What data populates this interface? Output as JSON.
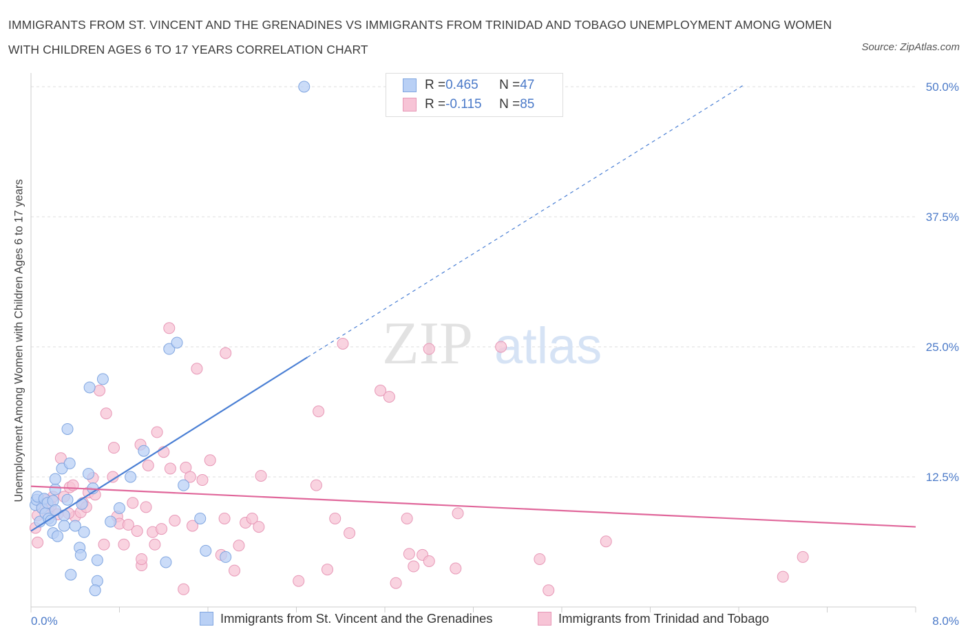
{
  "title": "Immigrants from St. Vincent and the Grenadines vs Immigrants from Trinidad and Tobago Unemployment Among Women with Children Ages 6 to 17 years Correlation Chart",
  "source": "Source: ZipAtlas.com",
  "watermark": {
    "zip": "ZIP",
    "atlas": "atlas"
  },
  "colors": {
    "blue": "#4a7fd4",
    "blue_fill": "#b9d0f5",
    "pink": "#e0669a",
    "pink_fill": "#f7c4d6",
    "grid": "#dddddd",
    "axis_text": "#4a79c8"
  },
  "legend": {
    "rows": [
      {
        "r_label": "R = ",
        "r_value": "0.465",
        "n_label": "N = ",
        "n_value": "47"
      },
      {
        "r_label": "R = ",
        "r_value": "-0.115",
        "n_label": "N = ",
        "n_value": "85"
      }
    ]
  },
  "chart_data": {
    "type": "scatter",
    "xlabel": "",
    "ylabel": "Unemployment Among Women with Children Ages 6 to 17 years",
    "xlim": [
      0,
      8
    ],
    "ylim": [
      0,
      50
    ],
    "x_tick_labels": [
      "0.0%",
      "8.0%"
    ],
    "y_ticks": [
      12.5,
      25.0,
      37.5,
      50.0
    ],
    "y_tick_labels": [
      "12.5%",
      "25.0%",
      "37.5%",
      "50.0%"
    ],
    "grid": true,
    "legend_position": "top-center",
    "series": [
      {
        "name": "Immigrants from St. Vincent and the Grenadines",
        "color": "#4a7fd4",
        "trend": {
          "x": [
            0.0,
            2.5
          ],
          "y": [
            7.3,
            24.0
          ],
          "dashed_to": {
            "x": 6.45,
            "y": 50.2
          }
        },
        "points": [
          [
            0.04,
            9.8
          ],
          [
            0.05,
            10.3
          ],
          [
            0.06,
            10.6
          ],
          [
            0.08,
            8.2
          ],
          [
            0.1,
            9.5
          ],
          [
            0.12,
            10.4
          ],
          [
            0.13,
            9.0
          ],
          [
            0.15,
            10.0
          ],
          [
            0.16,
            8.5
          ],
          [
            0.18,
            8.3
          ],
          [
            0.2,
            10.2
          ],
          [
            0.22,
            9.3
          ],
          [
            0.22,
            11.3
          ],
          [
            0.2,
            7.1
          ],
          [
            0.22,
            12.3
          ],
          [
            0.24,
            6.8
          ],
          [
            0.3,
            8.8
          ],
          [
            0.3,
            7.8
          ],
          [
            0.28,
            13.3
          ],
          [
            0.33,
            10.3
          ],
          [
            0.35,
            13.8
          ],
          [
            0.36,
            3.1
          ],
          [
            0.33,
            17.1
          ],
          [
            0.44,
            5.7
          ],
          [
            0.45,
            5.0
          ],
          [
            0.48,
            7.2
          ],
          [
            0.46,
            9.9
          ],
          [
            0.52,
            12.8
          ],
          [
            0.53,
            21.1
          ],
          [
            0.56,
            11.4
          ],
          [
            0.6,
            2.5
          ],
          [
            0.58,
            1.6
          ],
          [
            0.6,
            4.5
          ],
          [
            0.65,
            21.9
          ],
          [
            0.72,
            8.2
          ],
          [
            0.8,
            9.5
          ],
          [
            0.9,
            12.5
          ],
          [
            1.02,
            15.0
          ],
          [
            1.22,
            4.3
          ],
          [
            1.25,
            24.8
          ],
          [
            1.32,
            25.4
          ],
          [
            1.38,
            11.7
          ],
          [
            1.53,
            8.5
          ],
          [
            1.58,
            5.4
          ],
          [
            1.76,
            4.8
          ],
          [
            2.47,
            50.0
          ],
          [
            0.4,
            7.8
          ]
        ]
      },
      {
        "name": "Immigrants from Trinidad and Tobago",
        "color": "#e0669a",
        "trend": {
          "x": [
            0.0,
            8.0
          ],
          "y": [
            11.6,
            7.7
          ]
        },
        "points": [
          [
            0.04,
            7.6
          ],
          [
            0.06,
            8.8
          ],
          [
            0.1,
            9.6
          ],
          [
            0.14,
            10.3
          ],
          [
            0.16,
            9.3
          ],
          [
            0.18,
            9.7
          ],
          [
            0.2,
            10.6
          ],
          [
            0.24,
            8.9
          ],
          [
            0.27,
            14.3
          ],
          [
            0.3,
            10.6
          ],
          [
            0.35,
            11.5
          ],
          [
            0.38,
            11.7
          ],
          [
            0.4,
            8.7
          ],
          [
            0.45,
            9.1
          ],
          [
            0.47,
            10.0
          ],
          [
            0.5,
            9.6
          ],
          [
            0.52,
            11.0
          ],
          [
            0.56,
            12.4
          ],
          [
            0.58,
            10.8
          ],
          [
            0.62,
            20.8
          ],
          [
            0.66,
            6.0
          ],
          [
            0.68,
            18.6
          ],
          [
            0.75,
            15.3
          ],
          [
            0.74,
            12.5
          ],
          [
            0.78,
            8.7
          ],
          [
            0.8,
            8.0
          ],
          [
            0.84,
            6.0
          ],
          [
            0.88,
            7.9
          ],
          [
            0.92,
            10.0
          ],
          [
            0.96,
            7.3
          ],
          [
            0.99,
            15.6
          ],
          [
            1.0,
            4.0
          ],
          [
            1.04,
            9.6
          ],
          [
            1.06,
            13.6
          ],
          [
            1.1,
            7.2
          ],
          [
            1.12,
            6.0
          ],
          [
            1.14,
            16.8
          ],
          [
            1.18,
            7.5
          ],
          [
            1.2,
            14.9
          ],
          [
            1.25,
            26.8
          ],
          [
            1.26,
            13.3
          ],
          [
            1.3,
            8.3
          ],
          [
            1.38,
            1.7
          ],
          [
            1.4,
            13.4
          ],
          [
            1.44,
            12.5
          ],
          [
            1.46,
            7.8
          ],
          [
            1.5,
            22.9
          ],
          [
            1.55,
            12.2
          ],
          [
            1.62,
            14.1
          ],
          [
            1.72,
            5.0
          ],
          [
            1.76,
            24.4
          ],
          [
            1.75,
            8.5
          ],
          [
            1.84,
            3.5
          ],
          [
            1.88,
            5.9
          ],
          [
            1.94,
            8.1
          ],
          [
            2.0,
            8.5
          ],
          [
            2.06,
            7.7
          ],
          [
            2.08,
            12.6
          ],
          [
            2.42,
            2.5
          ],
          [
            2.58,
            11.7
          ],
          [
            2.6,
            18.8
          ],
          [
            2.68,
            3.6
          ],
          [
            2.75,
            8.5
          ],
          [
            2.82,
            25.3
          ],
          [
            2.88,
            7.1
          ],
          [
            3.16,
            20.8
          ],
          [
            3.24,
            20.2
          ],
          [
            3.3,
            2.3
          ],
          [
            3.4,
            8.5
          ],
          [
            3.42,
            5.1
          ],
          [
            3.46,
            3.9
          ],
          [
            3.54,
            5.0
          ],
          [
            3.6,
            4.4
          ],
          [
            3.6,
            24.8
          ],
          [
            3.84,
            3.7
          ],
          [
            3.86,
            9.0
          ],
          [
            4.25,
            25.0
          ],
          [
            4.6,
            4.6
          ],
          [
            4.68,
            1.6
          ],
          [
            5.2,
            6.3
          ],
          [
            6.8,
            2.9
          ],
          [
            6.98,
            4.8
          ],
          [
            0.06,
            6.2
          ],
          [
            0.34,
            9.0
          ],
          [
            1.0,
            4.6
          ]
        ]
      }
    ]
  }
}
